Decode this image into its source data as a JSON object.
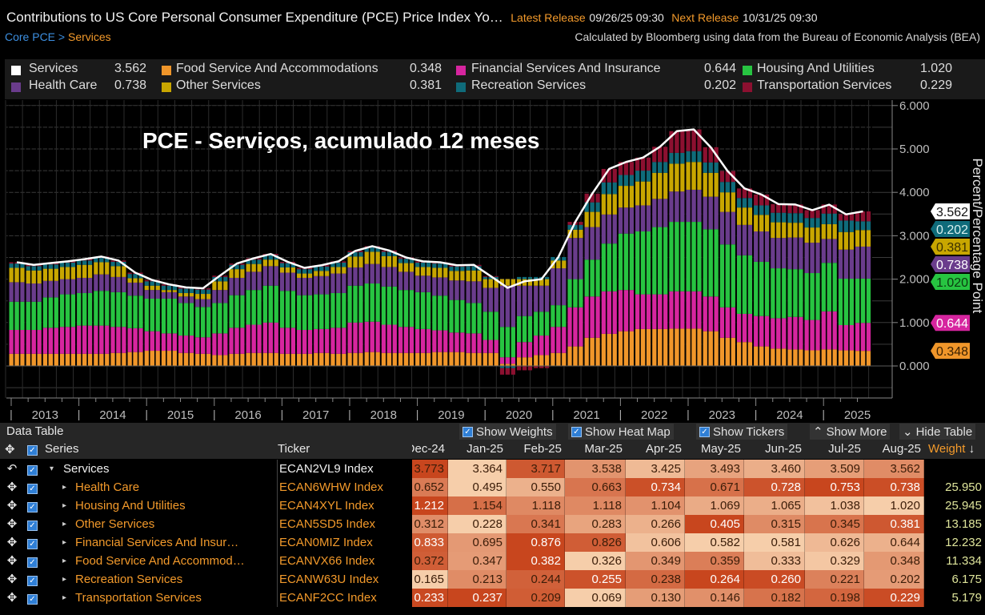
{
  "header": {
    "title": "Contributions to US Core Personal Consumer Expenditure (PCE) Price Index Yo…",
    "latest_label": "Latest Release",
    "latest_value": "09/26/25 09:30",
    "next_label": "Next Release",
    "next_value": "10/31/25 09:30",
    "source": "Calculated by Bloomberg using data from the Bureau of Economic Analysis (BEA)"
  },
  "breadcrumb": {
    "parent": "Core PCE",
    "sep": " > ",
    "current": "Services"
  },
  "legend": [
    {
      "name": "Services",
      "value": "3.562",
      "color": "#ffffff"
    },
    {
      "name": "Food Service And Accommodations",
      "value": "0.348",
      "color": "#f0962a"
    },
    {
      "name": "Financial Services And Insurance",
      "value": "0.644",
      "color": "#d6259f"
    },
    {
      "name": "Housing And Utilities",
      "value": "1.020",
      "color": "#27c441"
    },
    {
      "name": "Health Care",
      "value": "0.738",
      "color": "#6a3c8c"
    },
    {
      "name": "Other Services",
      "value": "0.381",
      "color": "#c8a600"
    },
    {
      "name": "Recreation Services",
      "value": "0.202",
      "color": "#0f6b7a"
    },
    {
      "name": "Transportation Services",
      "value": "0.229",
      "color": "#8c1030"
    }
  ],
  "chart_data": {
    "type": "bar",
    "stacked": true,
    "annotation": "PCE - Serviços, acumulado 12 meses",
    "ylabel": "Percent/Percentage Point",
    "ylim": [
      -0.75,
      6.1
    ],
    "yticks": [
      "0.000",
      "1.000",
      "2.000",
      "3.000",
      "4.000",
      "5.000",
      "6.000"
    ],
    "xticks": [
      "2013",
      "2014",
      "2015",
      "2016",
      "2017",
      "2018",
      "2019",
      "2020",
      "2021",
      "2022",
      "2023",
      "2024",
      "2025"
    ],
    "grid": true,
    "legend_position": "top",
    "x": [
      "2013-02",
      "2013-05",
      "2013-08",
      "2013-11",
      "2014-02",
      "2014-05",
      "2014-08",
      "2014-11",
      "2015-02",
      "2015-05",
      "2015-08",
      "2015-11",
      "2016-02",
      "2016-05",
      "2016-08",
      "2016-11",
      "2017-02",
      "2017-05",
      "2017-08",
      "2017-11",
      "2018-02",
      "2018-05",
      "2018-08",
      "2018-11",
      "2019-02",
      "2019-05",
      "2019-08",
      "2019-11",
      "2020-02",
      "2020-05",
      "2020-08",
      "2020-11",
      "2021-02",
      "2021-05",
      "2021-08",
      "2021-11",
      "2022-02",
      "2022-05",
      "2022-08",
      "2022-11",
      "2023-02",
      "2023-05",
      "2023-08",
      "2023-11",
      "2024-02",
      "2024-05",
      "2024-08",
      "2024-11",
      "2025-02",
      "2025-05",
      "2025-08"
    ],
    "line": {
      "name": "Services",
      "color": "#ffffff",
      "values": [
        2.39,
        2.33,
        2.37,
        2.41,
        2.46,
        2.52,
        2.43,
        2.15,
        1.98,
        1.88,
        1.81,
        1.79,
        2.08,
        2.36,
        2.48,
        2.58,
        2.4,
        2.26,
        2.32,
        2.41,
        2.65,
        2.76,
        2.66,
        2.5,
        2.41,
        2.39,
        2.32,
        2.33,
        2.07,
        1.8,
        1.95,
        2.0,
        2.51,
        3.32,
        3.97,
        4.54,
        4.7,
        4.8,
        5.05,
        5.41,
        5.45,
        5.04,
        4.49,
        4.09,
        3.95,
        3.73,
        3.72,
        3.59,
        3.717,
        3.493,
        3.562
      ]
    },
    "series": [
      {
        "name": "Food Service And Accommodations",
        "color": "#f0962a",
        "values": [
          0.28,
          0.28,
          0.28,
          0.28,
          0.28,
          0.28,
          0.3,
          0.32,
          0.35,
          0.35,
          0.3,
          0.28,
          0.25,
          0.28,
          0.3,
          0.3,
          0.28,
          0.28,
          0.3,
          0.28,
          0.3,
          0.32,
          0.3,
          0.3,
          0.3,
          0.32,
          0.32,
          0.3,
          0.3,
          0.05,
          0.2,
          0.25,
          0.3,
          0.45,
          0.65,
          0.74,
          0.8,
          0.85,
          0.85,
          0.86,
          0.86,
          0.8,
          0.65,
          0.55,
          0.45,
          0.4,
          0.38,
          0.36,
          0.382,
          0.359,
          0.348
        ]
      },
      {
        "name": "Financial Services And Insurance",
        "color": "#d6259f",
        "values": [
          0.55,
          0.55,
          0.6,
          0.62,
          0.65,
          0.65,
          0.6,
          0.55,
          0.45,
          0.4,
          0.4,
          0.38,
          0.5,
          0.6,
          0.65,
          0.7,
          0.6,
          0.55,
          0.55,
          0.6,
          0.7,
          0.7,
          0.65,
          0.6,
          0.55,
          0.5,
          0.45,
          0.45,
          0.3,
          0.15,
          0.35,
          0.45,
          0.6,
          0.9,
          0.95,
          0.98,
          0.95,
          0.8,
          0.8,
          0.86,
          0.86,
          0.8,
          0.7,
          0.65,
          0.7,
          0.7,
          0.75,
          0.7,
          0.876,
          0.582,
          0.644
        ]
      },
      {
        "name": "Housing And Utilities",
        "color": "#27c441",
        "values": [
          0.65,
          0.65,
          0.7,
          0.75,
          0.75,
          0.8,
          0.8,
          0.75,
          0.75,
          0.8,
          0.75,
          0.7,
          0.7,
          0.75,
          0.8,
          0.85,
          0.85,
          0.8,
          0.8,
          0.8,
          0.85,
          0.88,
          0.88,
          0.85,
          0.85,
          0.8,
          0.75,
          0.7,
          0.65,
          0.7,
          0.6,
          0.55,
          0.5,
          0.65,
          0.85,
          1.1,
          1.3,
          1.45,
          1.55,
          1.6,
          1.6,
          1.55,
          1.45,
          1.35,
          1.25,
          1.15,
          1.1,
          1.08,
          1.118,
          1.069,
          1.02
        ]
      },
      {
        "name": "Health Care",
        "color": "#6a3c8c",
        "values": [
          0.45,
          0.42,
          0.38,
          0.35,
          0.35,
          0.38,
          0.35,
          0.3,
          0.2,
          0.15,
          0.15,
          0.18,
          0.3,
          0.4,
          0.42,
          0.45,
          0.42,
          0.4,
          0.42,
          0.45,
          0.42,
          0.45,
          0.45,
          0.42,
          0.38,
          0.42,
          0.45,
          0.5,
          0.55,
          0.95,
          0.7,
          0.6,
          0.85,
          0.95,
          0.75,
          0.67,
          0.6,
          0.6,
          0.65,
          0.7,
          0.74,
          0.75,
          0.75,
          0.7,
          0.7,
          0.7,
          0.73,
          0.7,
          0.55,
          0.671,
          0.738
        ]
      },
      {
        "name": "Other Services",
        "color": "#c8a600",
        "values": [
          0.33,
          0.3,
          0.28,
          0.28,
          0.3,
          0.28,
          0.25,
          0.1,
          0.1,
          0.05,
          0.08,
          0.12,
          0.2,
          0.2,
          0.18,
          0.15,
          0.12,
          0.1,
          0.12,
          0.15,
          0.25,
          0.28,
          0.25,
          0.2,
          0.2,
          0.22,
          0.22,
          0.25,
          0.2,
          0.15,
          0.15,
          0.15,
          0.18,
          0.19,
          0.35,
          0.47,
          0.5,
          0.55,
          0.6,
          0.64,
          0.64,
          0.55,
          0.45,
          0.4,
          0.38,
          0.36,
          0.34,
          0.35,
          0.341,
          0.405,
          0.381
        ]
      },
      {
        "name": "Recreation Services",
        "color": "#0f6b7a",
        "values": [
          0.1,
          0.1,
          0.1,
          0.1,
          0.1,
          0.1,
          0.1,
          0.1,
          0.1,
          0.1,
          0.1,
          0.1,
          0.1,
          0.1,
          0.1,
          0.1,
          0.1,
          0.1,
          0.1,
          0.1,
          0.1,
          0.1,
          0.1,
          0.1,
          0.1,
          0.1,
          0.1,
          0.1,
          0.05,
          -0.05,
          0.05,
          0.05,
          0.08,
          0.11,
          0.22,
          0.27,
          0.25,
          0.25,
          0.25,
          0.25,
          0.25,
          0.24,
          0.24,
          0.22,
          0.22,
          0.22,
          0.22,
          0.22,
          0.244,
          0.264,
          0.202
        ]
      },
      {
        "name": "Transportation Services",
        "color": "#8c1030",
        "values": [
          0.03,
          0.03,
          0.03,
          0.03,
          0.03,
          0.03,
          0.03,
          0.03,
          0.03,
          0.03,
          0.03,
          0.03,
          0.03,
          0.03,
          0.03,
          0.03,
          0.03,
          0.03,
          0.03,
          0.03,
          0.03,
          0.03,
          0.03,
          0.03,
          0.03,
          0.03,
          0.03,
          0.03,
          0.02,
          -0.15,
          -0.1,
          -0.05,
          0,
          0.07,
          0.2,
          0.31,
          0.3,
          0.3,
          0.35,
          0.5,
          0.5,
          0.35,
          0.25,
          0.22,
          0.25,
          0.2,
          0.2,
          0.18,
          0.209,
          0.146,
          0.229
        ]
      }
    ],
    "last_value_tags": [
      {
        "label": "0.348",
        "series": "Food Service And Accommodations",
        "color": "#f0962a",
        "text": "#3a2000"
      },
      {
        "label": "0.644",
        "series": "Financial Services And Insurance",
        "color": "#d6259f",
        "text": "#ffffff"
      },
      {
        "label": "1.020",
        "series": "Housing And Utilities",
        "color": "#27c441",
        "text": "#0b3a10"
      },
      {
        "label": "0.738",
        "series": "Health Care",
        "color": "#6a3c8c",
        "text": "#ffffff"
      },
      {
        "label": "0.381",
        "series": "Other Services",
        "color": "#c8a600",
        "text": "#3a3000"
      },
      {
        "label": "0.202",
        "series": "Recreation Services",
        "color": "#0f6b7a",
        "text": "#d8f0f0"
      },
      {
        "label": "3.562",
        "series": "Services",
        "color": "#ffffff",
        "text": "#111111"
      }
    ]
  },
  "table": {
    "title": "Data Table",
    "buttons": {
      "weights": "Show Weights",
      "heatmap": "Show Heat Map",
      "tickers": "Show Tickers",
      "more": "Show More",
      "hide": "Hide Table"
    },
    "columns": {
      "series": "Series",
      "ticker": "Ticker",
      "months": [
        "Dec-24",
        "Jan-25",
        "Feb-25",
        "Mar-25",
        "Apr-25",
        "May-25",
        "Jun-25",
        "Jul-25",
        "Aug-25"
      ],
      "weight": "Weight",
      "sort_icon": "↓"
    },
    "rows": [
      {
        "name": "Services",
        "ticker": "ECAN2VL9 Index",
        "values": [
          "3.773",
          "3.364",
          "3.717",
          "3.538",
          "3.425",
          "3.493",
          "3.460",
          "3.509",
          "3.562"
        ],
        "weight": "",
        "expanded": true
      },
      {
        "name": "Health Care",
        "ticker": "ECAN6WHW Index",
        "values": [
          "0.652",
          "0.495",
          "0.550",
          "0.663",
          "0.734",
          "0.671",
          "0.728",
          "0.753",
          "0.738"
        ],
        "weight": "25.950"
      },
      {
        "name": "Housing And Utilities",
        "ticker": "ECAN4XYL Index",
        "values": [
          "1.212",
          "1.154",
          "1.118",
          "1.118",
          "1.104",
          "1.069",
          "1.065",
          "1.038",
          "1.020"
        ],
        "weight": "25.945"
      },
      {
        "name": "Other Services",
        "ticker": "ECAN5SD5 Index",
        "values": [
          "0.312",
          "0.228",
          "0.341",
          "0.283",
          "0.266",
          "0.405",
          "0.315",
          "0.345",
          "0.381"
        ],
        "weight": "13.185"
      },
      {
        "name": "Financial Services And Insur…",
        "ticker": "ECAN0MIZ Index",
        "values": [
          "0.833",
          "0.695",
          "0.876",
          "0.826",
          "0.606",
          "0.582",
          "0.581",
          "0.626",
          "0.644"
        ],
        "weight": "12.232"
      },
      {
        "name": "Food Service And Accommod…",
        "ticker": "ECANVX66 Index",
        "values": [
          "0.372",
          "0.347",
          "0.382",
          "0.326",
          "0.349",
          "0.359",
          "0.333",
          "0.329",
          "0.348"
        ],
        "weight": "11.334"
      },
      {
        "name": "Recreation Services",
        "ticker": "ECANW63U Index",
        "values": [
          "0.165",
          "0.213",
          "0.244",
          "0.255",
          "0.238",
          "0.264",
          "0.260",
          "0.221",
          "0.202"
        ],
        "weight": "6.175"
      },
      {
        "name": "Transportation Services",
        "ticker": "ECANF2CC Index",
        "values": [
          "0.233",
          "0.237",
          "0.209",
          "0.069",
          "0.130",
          "0.146",
          "0.182",
          "0.198",
          "0.229"
        ],
        "weight": "5.179"
      }
    ]
  }
}
